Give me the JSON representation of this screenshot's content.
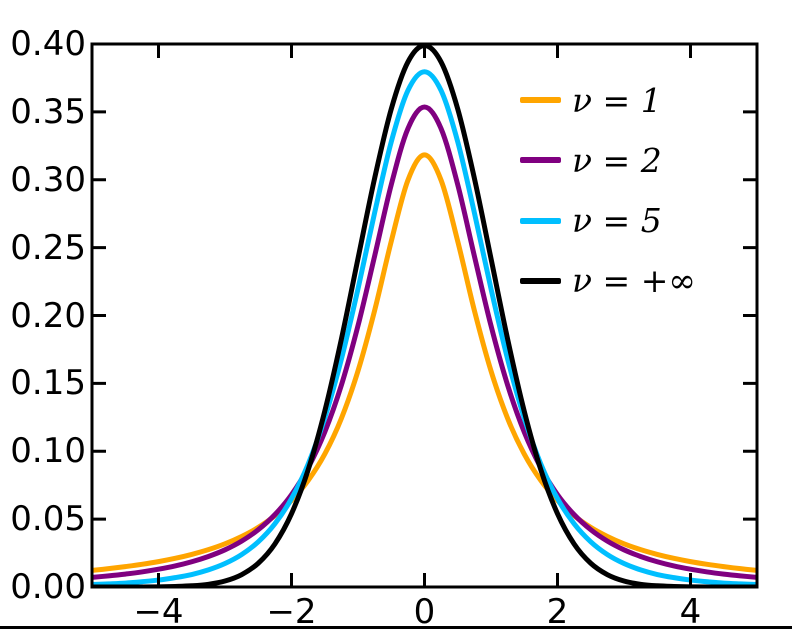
{
  "figure": {
    "background_color": "#ffffff",
    "axis_color": "#000000"
  },
  "chart_data": {
    "type": "line",
    "title": "",
    "xlabel": "",
    "ylabel": "",
    "xlim": [
      -5,
      5
    ],
    "ylim": [
      0,
      0.4
    ],
    "grid": false,
    "legend_position": "upper right",
    "legend_frame": false,
    "x_ticks": {
      "values": [
        -4,
        -2,
        0,
        2,
        4
      ],
      "labels": [
        "−4",
        "−2",
        "0",
        "2",
        "4"
      ]
    },
    "y_ticks": {
      "values": [
        0.0,
        0.05,
        0.1,
        0.15,
        0.2,
        0.25,
        0.3,
        0.35,
        0.4
      ],
      "labels": [
        "0.00",
        "0.05",
        "0.10",
        "0.15",
        "0.20",
        "0.25",
        "0.30",
        "0.35",
        "0.40"
      ]
    },
    "x": [
      -5,
      -4.75,
      -4.5,
      -4.25,
      -4,
      -3.75,
      -3.5,
      -3.25,
      -3,
      -2.75,
      -2.5,
      -2.25,
      -2,
      -1.75,
      -1.5,
      -1.25,
      -1,
      -0.75,
      -0.5,
      -0.25,
      0,
      0.25,
      0.5,
      0.75,
      1,
      1.25,
      1.5,
      1.75,
      2,
      2.25,
      2.5,
      2.75,
      3,
      3.25,
      3.5,
      3.75,
      4,
      4.25,
      4.5,
      4.75,
      5
    ],
    "series": [
      {
        "name": "ν = 1",
        "degrees_of_freedom": "1",
        "color": "#FFA500",
        "values": [
          0.0122,
          0.0135,
          0.015,
          0.0167,
          0.0187,
          0.0211,
          0.024,
          0.0275,
          0.0318,
          0.0372,
          0.0439,
          0.0525,
          0.0637,
          0.0784,
          0.0979,
          0.1242,
          0.1592,
          0.2037,
          0.2546,
          0.2996,
          0.3183,
          0.2996,
          0.2546,
          0.2037,
          0.1592,
          0.1242,
          0.0979,
          0.0784,
          0.0637,
          0.0525,
          0.0439,
          0.0372,
          0.0318,
          0.0275,
          0.024,
          0.0211,
          0.0187,
          0.0167,
          0.015,
          0.0135,
          0.0122
        ]
      },
      {
        "name": "ν = 2",
        "degrees_of_freedom": "2",
        "color": "#800080",
        "values": [
          0.0071,
          0.0082,
          0.0095,
          0.0111,
          0.0131,
          0.0155,
          0.0186,
          0.0225,
          0.0274,
          0.0338,
          0.0422,
          0.0533,
          0.068,
          0.0878,
          0.1141,
          0.1487,
          0.1925,
          0.2438,
          0.2963,
          0.3376,
          0.3536,
          0.3376,
          0.2963,
          0.2438,
          0.1925,
          0.1487,
          0.1141,
          0.0878,
          0.068,
          0.0533,
          0.0422,
          0.0338,
          0.0274,
          0.0225,
          0.0186,
          0.0155,
          0.0131,
          0.0111,
          0.0095,
          0.0082,
          0.0071
        ]
      },
      {
        "name": "ν = 5",
        "degrees_of_freedom": "5",
        "color": "#00BFFF",
        "values": [
          0.0018,
          0.0023,
          0.0029,
          0.0039,
          0.0051,
          0.0069,
          0.0092,
          0.0126,
          0.0173,
          0.0239,
          0.0333,
          0.0466,
          0.0651,
          0.0905,
          0.1245,
          0.1679,
          0.2197,
          0.2757,
          0.3279,
          0.3657,
          0.3796,
          0.3657,
          0.3279,
          0.2757,
          0.2197,
          0.1679,
          0.1245,
          0.0905,
          0.0651,
          0.0466,
          0.0333,
          0.0239,
          0.0173,
          0.0126,
          0.0092,
          0.0069,
          0.0051,
          0.0039,
          0.0029,
          0.0023,
          0.0018
        ]
      },
      {
        "name": "ν = +∞",
        "degrees_of_freedom": "∞",
        "color": "#000000",
        "values": [
          0.0,
          0.0,
          0.0,
          0.0,
          0.0001,
          0.0004,
          0.0009,
          0.002,
          0.0044,
          0.0091,
          0.0175,
          0.0317,
          0.054,
          0.0863,
          0.1295,
          0.1826,
          0.242,
          0.3011,
          0.3521,
          0.3867,
          0.3989,
          0.3867,
          0.3521,
          0.3011,
          0.242,
          0.1826,
          0.1295,
          0.0863,
          0.054,
          0.0317,
          0.0175,
          0.0091,
          0.0044,
          0.002,
          0.0009,
          0.0004,
          0.0001,
          0.0,
          0.0,
          0.0,
          0.0
        ]
      }
    ]
  }
}
